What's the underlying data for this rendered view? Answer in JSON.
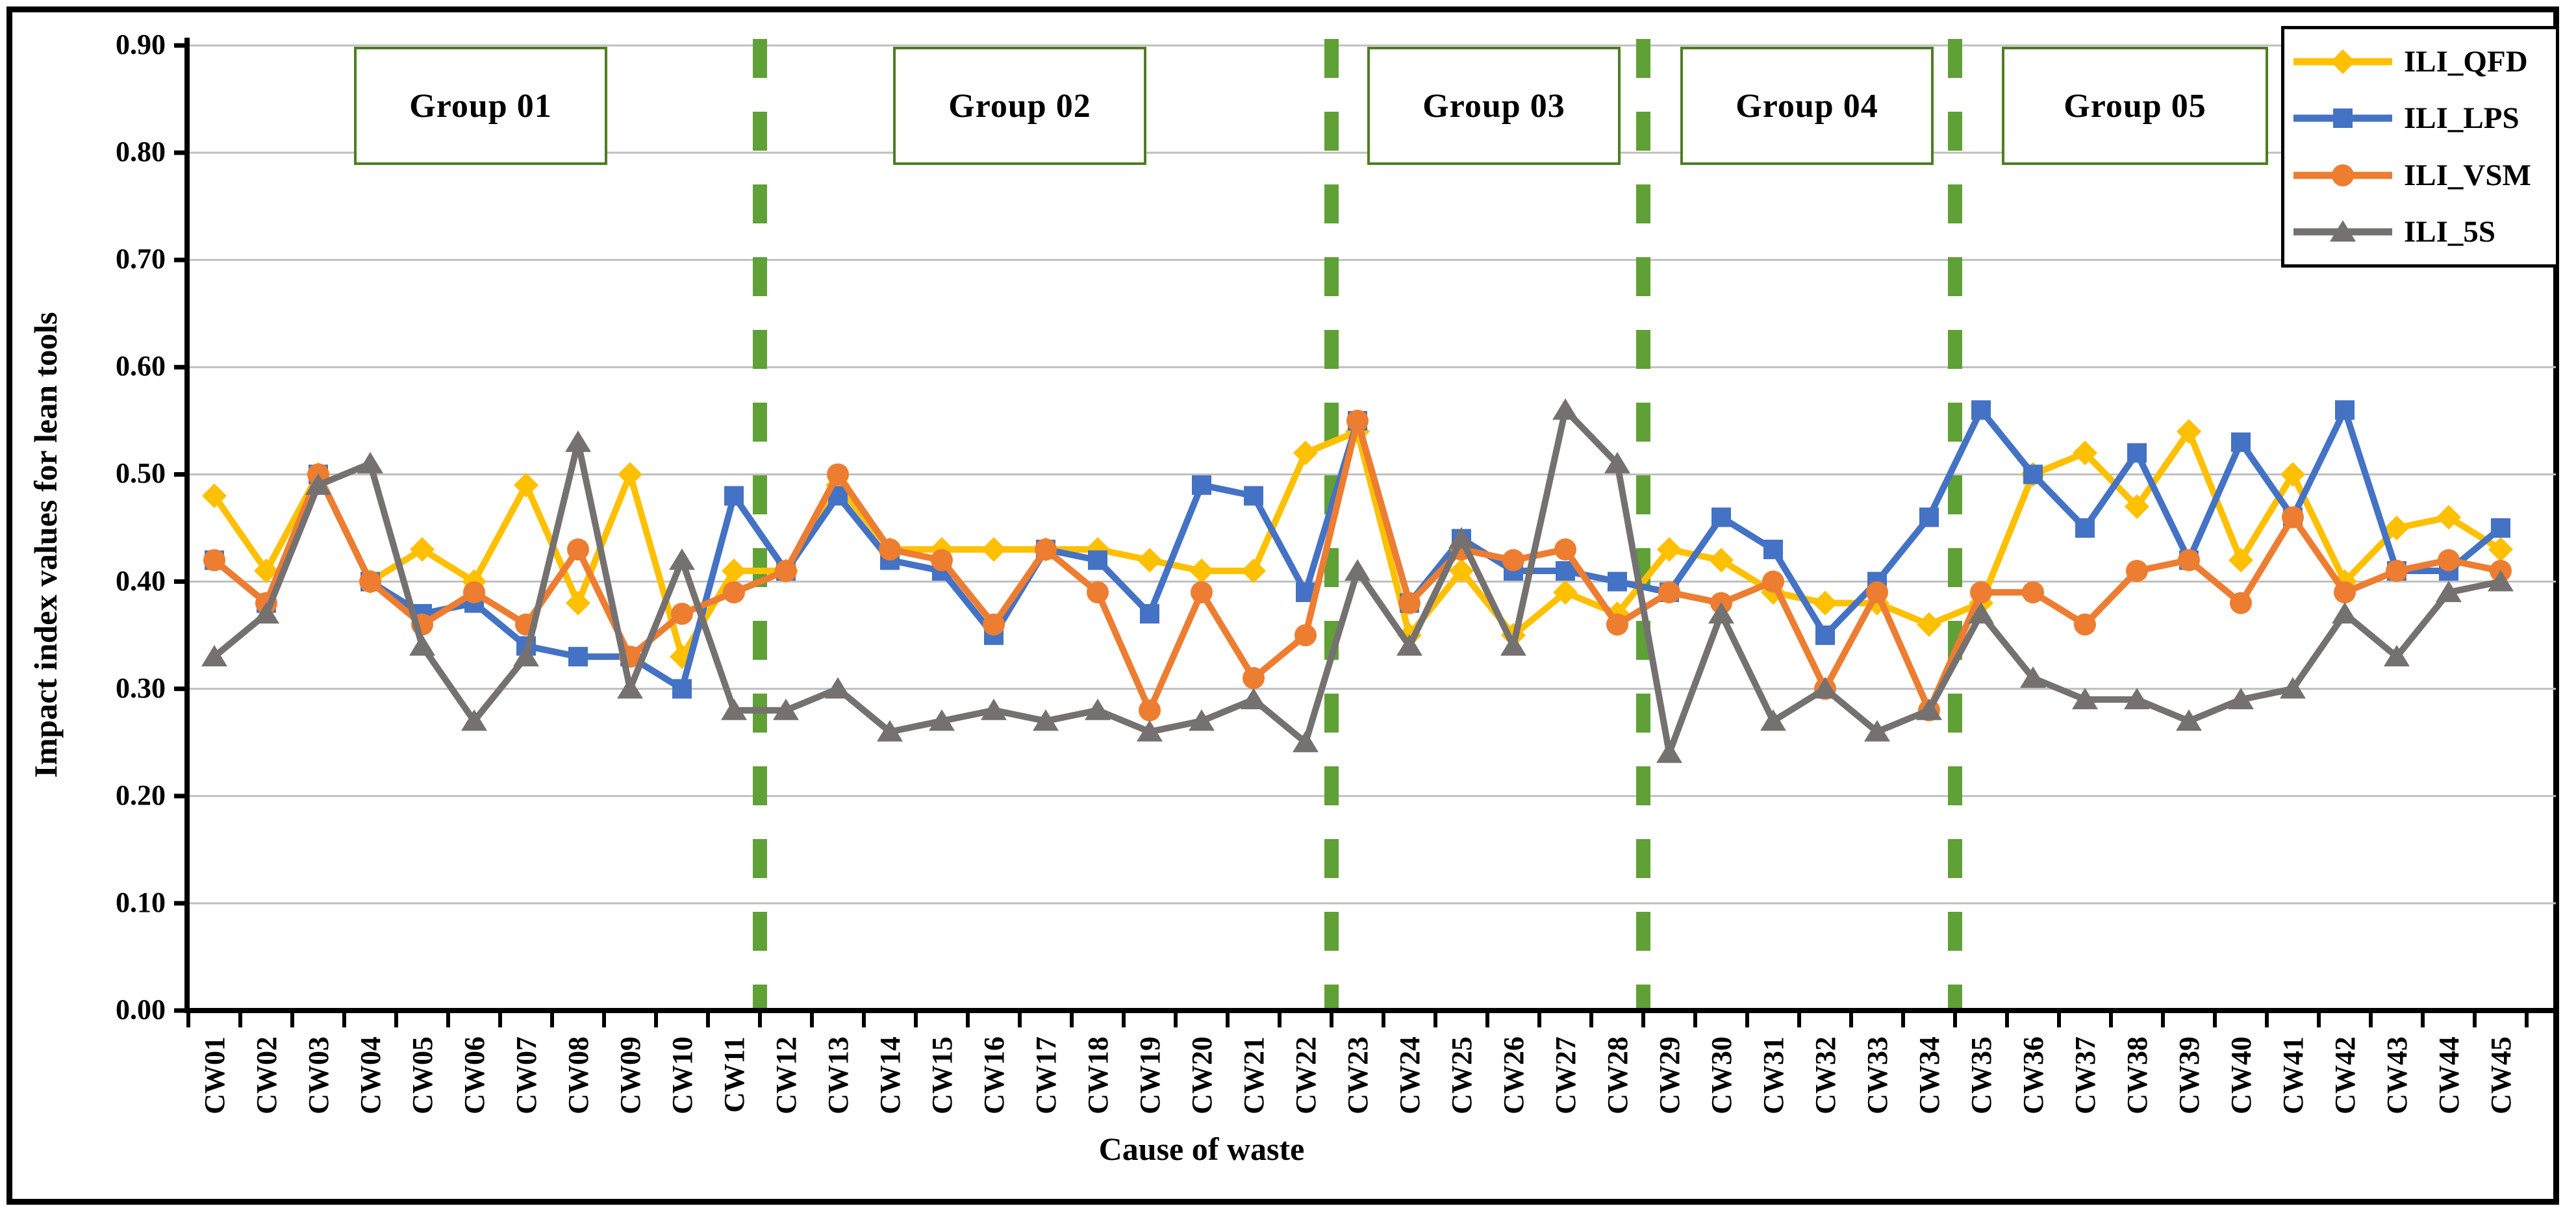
{
  "chart_data": {
    "type": "line",
    "title": "",
    "xlabel": "Cause of waste",
    "ylabel": "Impact index values for lean tools",
    "ylim": [
      0.0,
      0.9
    ],
    "ytick_step": 0.1,
    "ytick_labels": [
      "0.00",
      "0.10",
      "0.20",
      "0.30",
      "0.40",
      "0.50",
      "0.60",
      "0.70",
      "0.80",
      "0.90"
    ],
    "grid": true,
    "legend_position": "top-right",
    "categories": [
      "CW01",
      "CW02",
      "CW03",
      "CW04",
      "CW05",
      "CW06",
      "CW07",
      "CW08",
      "CW09",
      "CW10",
      "CW11",
      "CW12",
      "CW13",
      "CW14",
      "CW15",
      "CW16",
      "CW17",
      "CW18",
      "CW19",
      "CW20",
      "CW21",
      "CW22",
      "CW23",
      "CW24",
      "CW25",
      "CW26",
      "CW27",
      "CW28",
      "CW29",
      "CW30",
      "CW31",
      "CW32",
      "CW33",
      "CW34",
      "CW35",
      "CW36",
      "CW37",
      "CW38",
      "CW39",
      "CW40",
      "CW41",
      "CW42",
      "CW43",
      "CW44",
      "CW45"
    ],
    "series": [
      {
        "name": "ILI_QFD",
        "color": "#FFC000",
        "marker": "diamond",
        "values": [
          0.48,
          0.41,
          0.5,
          0.4,
          0.43,
          0.4,
          0.49,
          0.38,
          0.5,
          0.33,
          0.41,
          0.41,
          0.49,
          0.43,
          0.43,
          0.43,
          0.43,
          0.43,
          0.42,
          0.41,
          0.41,
          0.52,
          0.54,
          0.35,
          0.41,
          0.35,
          0.39,
          0.37,
          0.43,
          0.42,
          0.39,
          0.38,
          0.38,
          0.36,
          0.38,
          0.5,
          0.52,
          0.47,
          0.54,
          0.42,
          0.5,
          0.4,
          0.45,
          0.46,
          0.43
        ]
      },
      {
        "name": "ILI_LPS",
        "color": "#4472C4",
        "marker": "square",
        "values": [
          0.42,
          0.38,
          0.5,
          0.4,
          0.37,
          0.38,
          0.34,
          0.33,
          0.33,
          0.3,
          0.48,
          0.41,
          0.48,
          0.42,
          0.41,
          0.35,
          0.43,
          0.42,
          0.37,
          0.49,
          0.48,
          0.39,
          0.55,
          0.38,
          0.44,
          0.41,
          0.41,
          0.4,
          0.39,
          0.46,
          0.43,
          0.35,
          0.4,
          0.46,
          0.56,
          0.5,
          0.45,
          0.52,
          0.42,
          0.53,
          0.46,
          0.56,
          0.41,
          0.41,
          0.45
        ]
      },
      {
        "name": "ILI_VSM",
        "color": "#ED7D31",
        "marker": "circle",
        "values": [
          0.42,
          0.38,
          0.5,
          0.4,
          0.36,
          0.39,
          0.36,
          0.43,
          0.33,
          0.37,
          0.39,
          0.41,
          0.5,
          0.43,
          0.42,
          0.36,
          0.43,
          0.39,
          0.28,
          0.39,
          0.31,
          0.35,
          0.55,
          0.38,
          0.43,
          0.42,
          0.43,
          0.36,
          0.39,
          0.38,
          0.4,
          0.3,
          0.39,
          0.28,
          0.39,
          0.39,
          0.36,
          0.41,
          0.42,
          0.38,
          0.46,
          0.39,
          0.41,
          0.42,
          0.41
        ]
      },
      {
        "name": "ILI_5S",
        "color": "#757171",
        "marker": "triangle",
        "values": [
          0.33,
          0.37,
          0.49,
          0.51,
          0.34,
          0.27,
          0.33,
          0.53,
          0.3,
          0.42,
          0.28,
          0.28,
          0.3,
          0.26,
          0.27,
          0.28,
          0.27,
          0.28,
          0.26,
          0.27,
          0.29,
          0.25,
          0.41,
          0.34,
          0.44,
          0.34,
          0.56,
          0.51,
          0.24,
          0.37,
          0.27,
          0.3,
          0.26,
          0.28,
          0.37,
          0.31,
          0.29,
          0.29,
          0.27,
          0.29,
          0.3,
          0.37,
          0.33,
          0.39,
          0.4
        ]
      }
    ],
    "groups": [
      {
        "label": "Group 01",
        "from": 1,
        "to": 11
      },
      {
        "label": "Group 02",
        "from": 12,
        "to": 22
      },
      {
        "label": "Group 03",
        "from": 23,
        "to": 28
      },
      {
        "label": "Group 04",
        "from": 29,
        "to": 34
      },
      {
        "label": "Group 05",
        "from": 35,
        "to": 45
      }
    ],
    "dividers_after_category": [
      11,
      22,
      28,
      34
    ],
    "colors": {
      "gridline": "#BFBFBF",
      "axis": "#000000",
      "divider_green": "#5fa037",
      "group_box_border": "#4e7d22",
      "legend_border": "#000000",
      "outer_border": "#000000"
    }
  }
}
